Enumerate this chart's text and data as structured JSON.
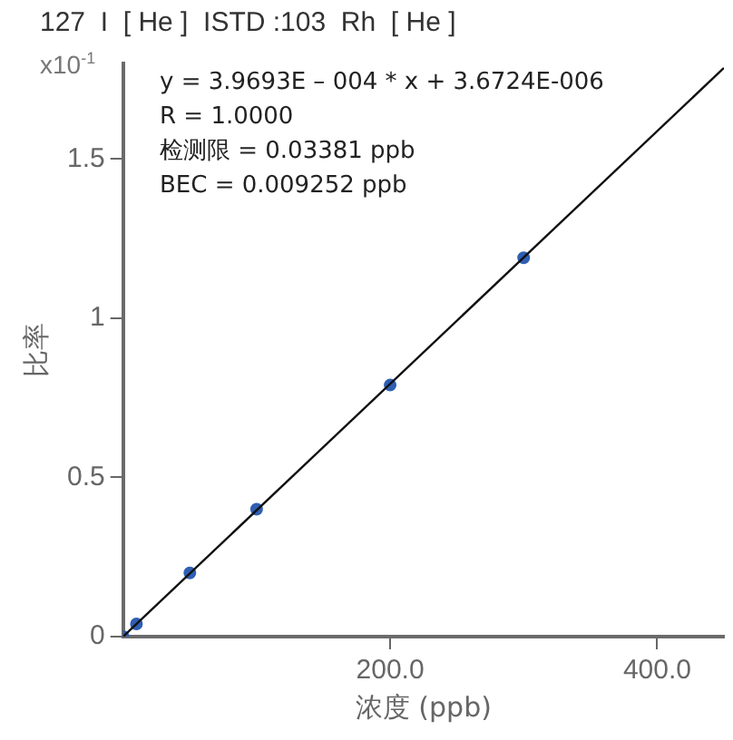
{
  "chart_data": {
    "type": "scatter",
    "title": "127  I  [ He ]  ISTD :103  Rh  [ He ]",
    "xlabel": "浓度 (ppb)",
    "ylabel": "比率",
    "annotations": [
      "x10$^{-1}$",
      "y = 3.9693E – 004 * x + 3.6724E-006",
      "R = 1.0000",
      "检测限 = 0.03381 ppb",
      "BEC = 0.009252 ppb"
    ],
    "series": [
      {
        "color": "#2f5fb3",
        "marker": "circle",
        "x": [
          0,
          10,
          50,
          100,
          200,
          300
        ],
        "values": [
          0,
          0.04,
          0.2,
          0.4,
          0.79,
          1.19
        ]
      },
      {
        "type": "line",
        "color": "#111111",
        "marker": "none",
        "x": [
          0,
          450
        ],
        "values": [
          0,
          1.786
        ]
      }
    ],
    "xlim": [
      0,
      450
    ],
    "xticks": [
      {
        "value": 200,
        "label": "200.0"
      },
      {
        "value": 400,
        "label": "400.0"
      }
    ],
    "ylim": [
      0,
      1.8
    ],
    "yticks": [
      0,
      0.5,
      1,
      1.5
    ],
    "grid": false,
    "legend": false
  }
}
